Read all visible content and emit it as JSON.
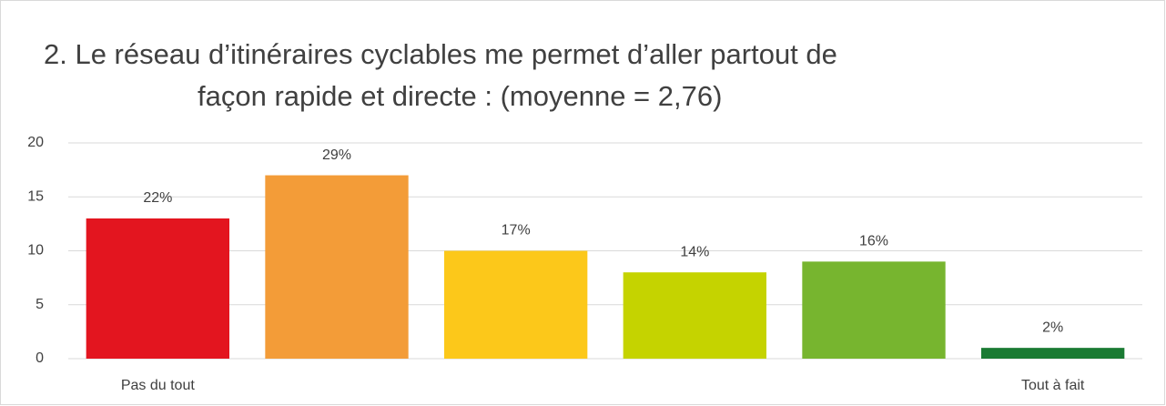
{
  "chart_data": {
    "type": "bar",
    "title": [
      "2. Le réseau d’itinéraires cyclables me permet d’aller partout de",
      "façon rapide et directe : (moyenne = 2,76)"
    ],
    "categories": [
      "Pas du tout",
      null,
      null,
      null,
      null,
      "Tout à fait"
    ],
    "values": [
      13,
      17,
      10,
      8,
      9,
      1
    ],
    "value_labels": [
      "22%",
      "29%",
      "17%",
      "14%",
      "16%",
      "2%"
    ],
    "colors": [
      "#e3151f",
      "#f39c38",
      "#fcc81a",
      "#c5d300",
      "#77b52f",
      "#1a7a33"
    ],
    "ylim": [
      0,
      20
    ],
    "yticks": [
      0,
      5,
      10,
      15,
      20
    ],
    "grid": true
  }
}
